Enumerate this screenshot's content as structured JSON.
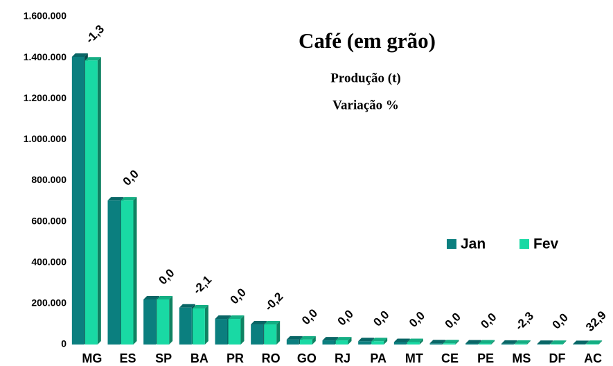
{
  "chart_data": {
    "type": "bar",
    "title": "Café (em grão)",
    "subtitle": [
      "Produção (t)",
      "Variação %"
    ],
    "categories": [
      "MG",
      "ES",
      "SP",
      "BA",
      "PR",
      "RO",
      "GO",
      "RJ",
      "PA",
      "MT",
      "CE",
      "PE",
      "MS",
      "DF",
      "AC"
    ],
    "series": [
      {
        "name": "Jan",
        "color": "#0b7f7f",
        "values": [
          1404000,
          703000,
          220000,
          180000,
          125000,
          98000,
          24000,
          20000,
          16000,
          12000,
          6000,
          5000,
          4000,
          3000,
          2000
        ]
      },
      {
        "name": "Fev",
        "color": "#19d9a4",
        "values": [
          1386000,
          703000,
          220000,
          176000,
          125000,
          98000,
          24000,
          20000,
          16000,
          12000,
          6000,
          5000,
          4000,
          3000,
          3000
        ]
      }
    ],
    "annotations": [
      "-1,3",
      "0,0",
      "0,0",
      "-2,1",
      "0,0",
      "-0,2",
      "0,0",
      "0,0",
      "0,0",
      "0,0",
      "0,0",
      "0,0",
      "-2,3",
      "0,0",
      "32,9"
    ],
    "ylim": [
      0,
      1600000
    ],
    "yticks": [
      {
        "value": 0,
        "label": "0"
      },
      {
        "value": 200000,
        "label": "200.000"
      },
      {
        "value": 400000,
        "label": "400.000"
      },
      {
        "value": 600000,
        "label": "600.000"
      },
      {
        "value": 800000,
        "label": "800.000"
      },
      {
        "value": 1000000,
        "label": "1.000.000"
      },
      {
        "value": 1200000,
        "label": "1.200.000"
      },
      {
        "value": 1400000,
        "label": "1.400.000"
      },
      {
        "value": 1600000,
        "label": "1.600.000"
      }
    ],
    "legend": "right"
  }
}
